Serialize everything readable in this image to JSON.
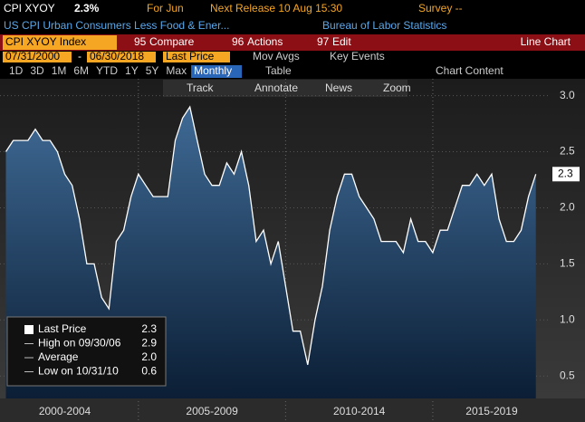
{
  "header": {
    "ticker": "CPI XYOY",
    "price": "2.3%",
    "period": "For Jun",
    "next_release": "Next Release 10 Aug 15:30",
    "survey": "Survey --",
    "description": "US CPI Urban Consumers Less Food & Ener...",
    "source": "Bureau of Labor Statistics"
  },
  "toolbar": {
    "security": "CPI XYOY Index",
    "compare_key": "95",
    "compare": "Compare",
    "actions_key": "96",
    "actions": "Actions",
    "edit_key": "97",
    "edit": "Edit",
    "view": "Line Chart"
  },
  "range": {
    "start": "07/31/2000",
    "sep": "-",
    "end": "06/30/2018",
    "field": "Last Price",
    "mov_avgs": "Mov Avgs",
    "key_events": "Key Events"
  },
  "tabs": [
    "1D",
    "3D",
    "1M",
    "6M",
    "YTD",
    "1Y",
    "5Y",
    "Max"
  ],
  "frequency": "Monthly",
  "table": "Table",
  "chart_content": "Chart Content",
  "tools": [
    "Track",
    "Annotate",
    "News",
    "Zoom"
  ],
  "legend": [
    {
      "name": "Last Price",
      "value": "2.3"
    },
    {
      "name": "High on 09/30/06",
      "value": "2.9"
    },
    {
      "name": "Average",
      "value": "2.0"
    },
    {
      "name": "Low on 10/31/10",
      "value": "0.6"
    }
  ],
  "chart_data": {
    "type": "line",
    "x": [
      2000.5,
      2000.75,
      2001,
      2001.25,
      2001.5,
      2001.75,
      2002,
      2002.25,
      2002.5,
      2002.75,
      2003,
      2003.25,
      2003.5,
      2003.75,
      2004,
      2004.25,
      2004.5,
      2004.75,
      2005,
      2005.25,
      2005.5,
      2005.75,
      2006,
      2006.25,
      2006.5,
      2006.75,
      2007,
      2007.25,
      2007.5,
      2007.75,
      2008,
      2008.25,
      2008.5,
      2008.75,
      2009,
      2009.25,
      2009.5,
      2009.75,
      2010,
      2010.25,
      2010.5,
      2010.75,
      2011,
      2011.25,
      2011.5,
      2011.75,
      2012,
      2012.25,
      2012.5,
      2012.75,
      2013,
      2013.25,
      2013.5,
      2013.75,
      2014,
      2014.25,
      2014.5,
      2014.75,
      2015,
      2015.25,
      2015.5,
      2015.75,
      2016,
      2016.25,
      2016.5,
      2016.75,
      2017,
      2017.25,
      2017.5,
      2017.75,
      2018,
      2018.25,
      2018.5
    ],
    "series": [
      {
        "name": "Last Price",
        "color": "#ffffff",
        "values": [
          2.5,
          2.6,
          2.6,
          2.6,
          2.7,
          2.6,
          2.6,
          2.5,
          2.3,
          2.2,
          1.9,
          1.5,
          1.5,
          1.2,
          1.1,
          1.7,
          1.8,
          2.1,
          2.3,
          2.2,
          2.1,
          2.1,
          2.1,
          2.6,
          2.8,
          2.9,
          2.6,
          2.3,
          2.2,
          2.2,
          2.4,
          2.3,
          2.5,
          2.2,
          1.7,
          1.8,
          1.5,
          1.7,
          1.3,
          0.9,
          0.9,
          0.6,
          1.0,
          1.3,
          1.8,
          2.1,
          2.3,
          2.3,
          2.1,
          2.0,
          1.9,
          1.7,
          1.7,
          1.7,
          1.6,
          1.9,
          1.7,
          1.7,
          1.6,
          1.8,
          1.8,
          2.0,
          2.2,
          2.2,
          2.3,
          2.2,
          2.3,
          1.9,
          1.7,
          1.7,
          1.8,
          2.1,
          2.3
        ]
      }
    ],
    "xlim": [
      2000.3,
      2019.0
    ],
    "xticks": [
      {
        "value": 2002.5,
        "label": "2000-2004"
      },
      {
        "value": 2007.5,
        "label": "2005-2009"
      },
      {
        "value": 2012.5,
        "label": "2010-2014"
      },
      {
        "value": 2017,
        "label": "2015-2019"
      }
    ],
    "xgrid": [
      2005,
      2010,
      2015
    ],
    "ylim": [
      0.3,
      3.15
    ],
    "yticks": [
      0.5,
      {
        "value": 1,
        "label": "1.0"
      },
      1.5,
      {
        "value": 2,
        "label": "2.0"
      },
      2.5,
      {
        "value": 3,
        "label": "3.0"
      }
    ],
    "grid": true
  }
}
